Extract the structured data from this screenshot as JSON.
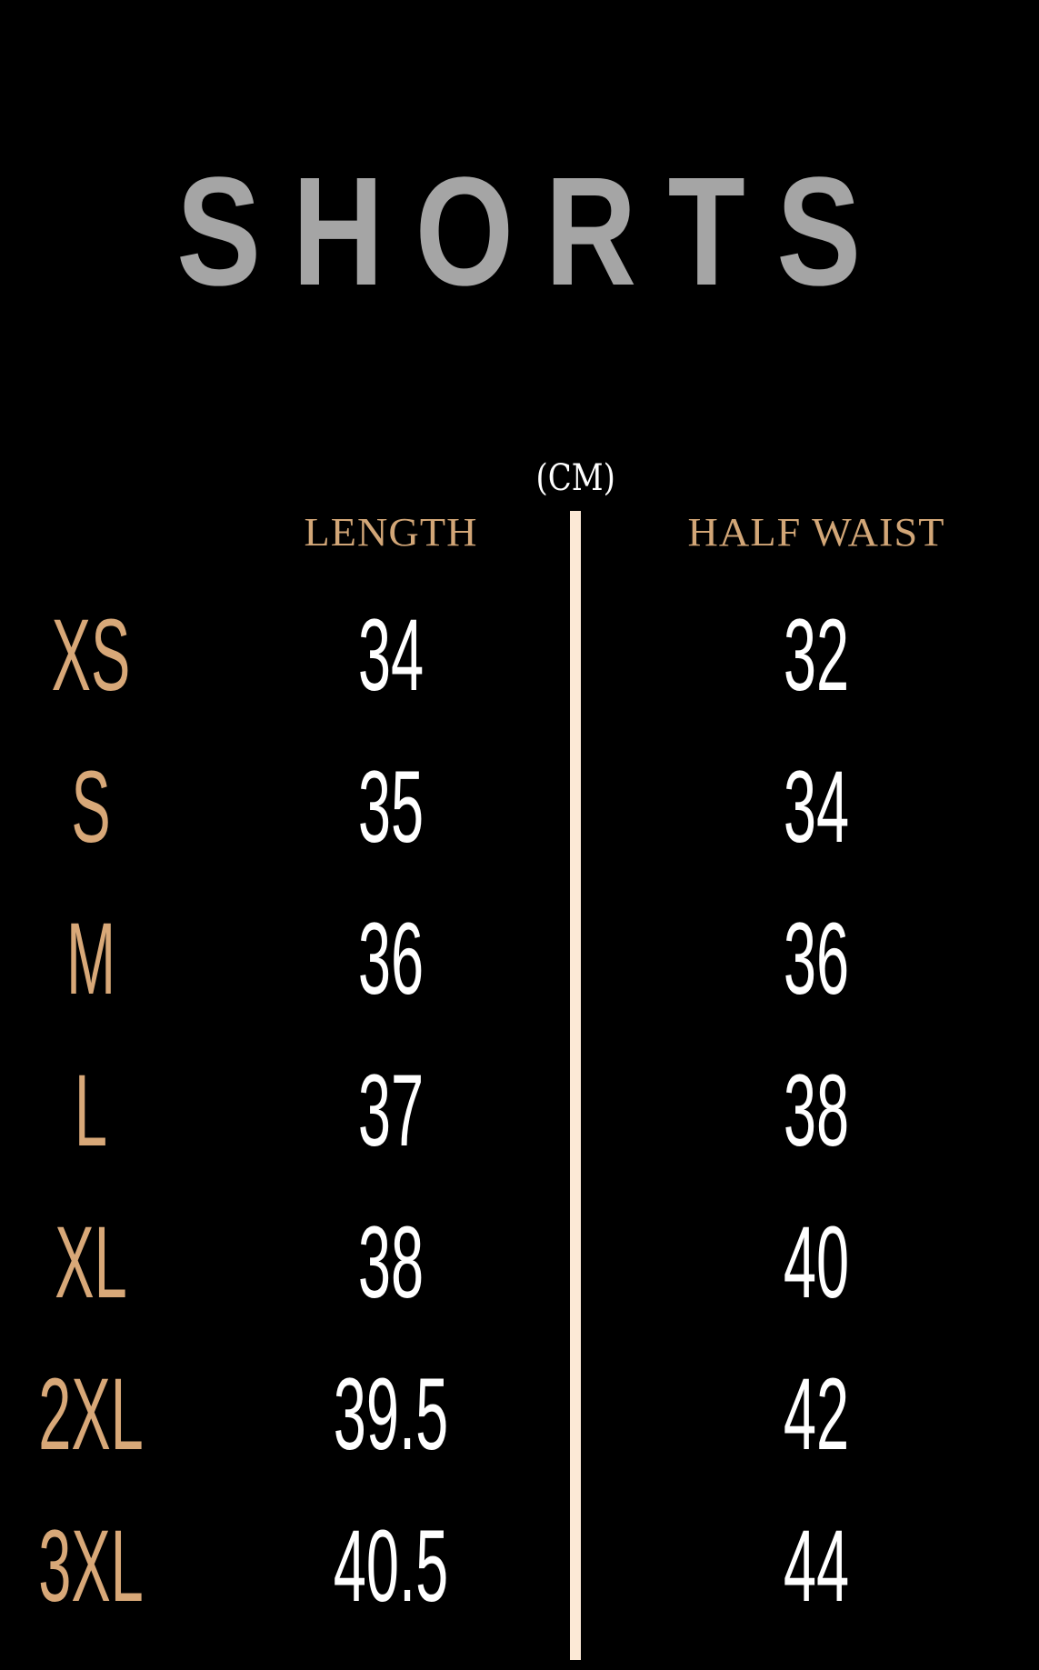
{
  "title": "SHORTS",
  "unit": "(CM)",
  "columns": [
    "LENGTH",
    "HALF WAIST"
  ],
  "colors": {
    "background": "#000000",
    "title": "#a5a5a5",
    "accent": "#d2a677",
    "divider": "#fce9d6",
    "values": "#ffffff"
  },
  "rows": [
    {
      "size": "XS",
      "length": "34",
      "half_waist": "32"
    },
    {
      "size": "S",
      "length": "35",
      "half_waist": "34"
    },
    {
      "size": "M",
      "length": "36",
      "half_waist": "36"
    },
    {
      "size": "L",
      "length": "37",
      "half_waist": "38"
    },
    {
      "size": "XL",
      "length": "38",
      "half_waist": "40"
    },
    {
      "size": "2XL",
      "length": "39.5",
      "half_waist": "42"
    },
    {
      "size": "3XL",
      "length": "40.5",
      "half_waist": "44"
    }
  ]
}
